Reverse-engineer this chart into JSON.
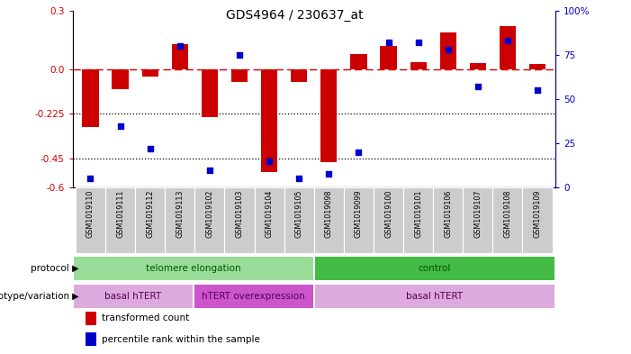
{
  "title": "GDS4964 / 230637_at",
  "samples": [
    "GSM1019110",
    "GSM1019111",
    "GSM1019112",
    "GSM1019113",
    "GSM1019102",
    "GSM1019103",
    "GSM1019104",
    "GSM1019105",
    "GSM1019098",
    "GSM1019099",
    "GSM1019100",
    "GSM1019101",
    "GSM1019106",
    "GSM1019107",
    "GSM1019108",
    "GSM1019109"
  ],
  "red_bars": [
    -0.29,
    -0.1,
    -0.035,
    0.13,
    -0.24,
    -0.065,
    -0.52,
    -0.065,
    -0.47,
    0.08,
    0.12,
    0.04,
    0.19,
    0.035,
    0.22,
    0.03
  ],
  "blue_pcts": [
    5,
    35,
    22,
    80,
    10,
    75,
    15,
    5,
    8,
    20,
    82,
    82,
    78,
    57,
    83,
    55
  ],
  "ylim_left": [
    -0.6,
    0.3
  ],
  "ylim_right": [
    0,
    100
  ],
  "left_yticks": [
    0.3,
    0.0,
    -0.225,
    -0.45,
    -0.6
  ],
  "right_yticks": [
    100,
    75,
    50,
    25,
    0
  ],
  "dotted_lines": [
    -0.225,
    -0.45
  ],
  "dashed_line": 0.0,
  "protocol_groups": [
    {
      "label": "telomere elongation",
      "start": 0,
      "end": 8,
      "color": "#99dd99"
    },
    {
      "label": "control",
      "start": 8,
      "end": 16,
      "color": "#44bb44"
    }
  ],
  "genotype_groups": [
    {
      "label": "basal hTERT",
      "start": 0,
      "end": 4,
      "color": "#ddaadd"
    },
    {
      "label": "hTERT overexpression",
      "start": 4,
      "end": 8,
      "color": "#cc55cc"
    },
    {
      "label": "basal hTERT",
      "start": 8,
      "end": 16,
      "color": "#ddaadd"
    }
  ],
  "bar_color": "#cc0000",
  "dot_color": "#0000cc",
  "left_label_color": "#cc0000",
  "right_label_color": "#0000cc",
  "xtick_bg": "#cccccc",
  "legend_items": [
    "transformed count",
    "percentile rank within the sample"
  ],
  "bg_color": "#ffffff"
}
